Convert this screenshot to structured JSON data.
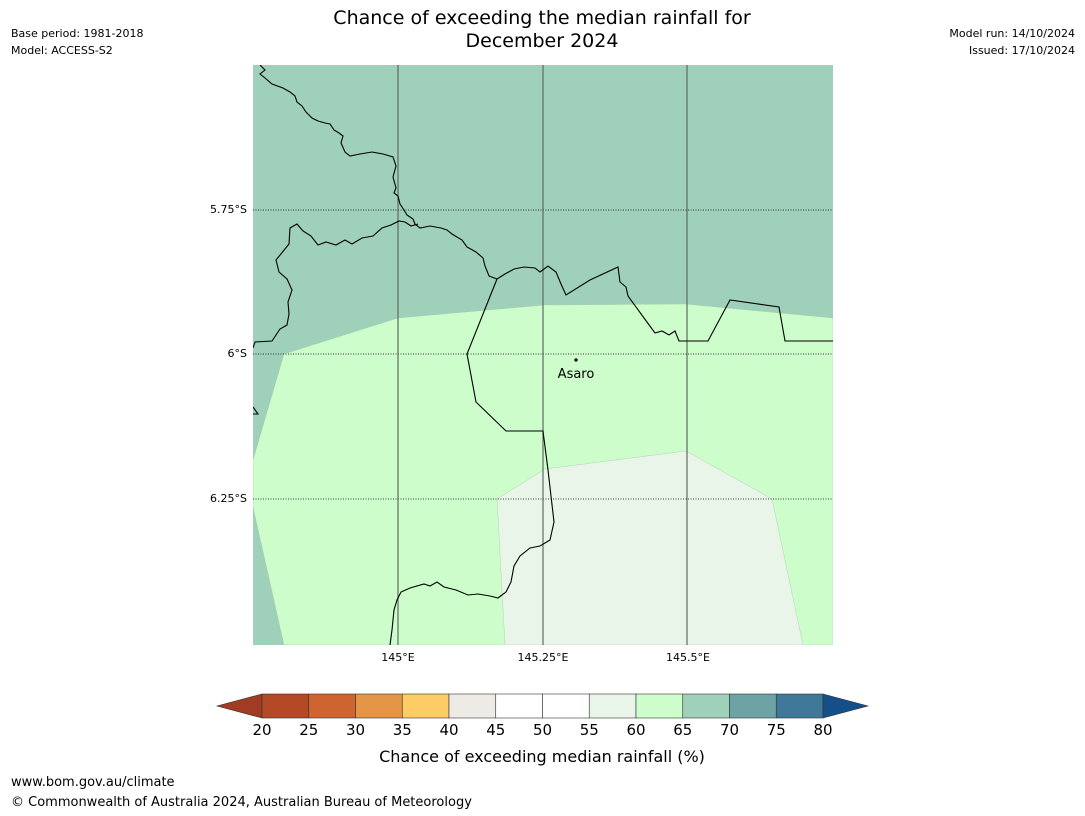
{
  "header": {
    "title_line1": "Chance of exceeding the median rainfall for",
    "title_line2": "December 2024",
    "base_period": "Base period: 1981-2018",
    "model": "Model: ACCESS-S2",
    "model_run": "Model run: 14/10/2024",
    "issued": "Issued: 17/10/2024"
  },
  "map": {
    "lat_ticks": [
      "5.75°S",
      "6°S",
      "6.25°S"
    ],
    "lon_ticks": [
      "145°E",
      "145.25°E",
      "145.5°E"
    ],
    "place": "Asaro",
    "colors": {
      "band_65_70": "#9ed0ba",
      "band_60_65": "#ccfdcb",
      "band_55_60": "#e9f5e9",
      "border": "#000000",
      "gridline": "#5f6b62"
    }
  },
  "colorbar": {
    "label": "Chance of exceeding median rainfall (%)",
    "ticks": [
      "20",
      "25",
      "30",
      "35",
      "40",
      "45",
      "50",
      "55",
      "60",
      "65",
      "70",
      "75",
      "80"
    ],
    "colors": [
      "#a13b24",
      "#b34a25",
      "#ce6430",
      "#e49646",
      "#fdcc66",
      "#eeeae6",
      "#ffffff",
      "#ffffff",
      "#e9f5e9",
      "#ccfdcb",
      "#9ed0ba",
      "#6da3a5",
      "#3f7898",
      "#144f89"
    ]
  },
  "footer": {
    "url": "www.bom.gov.au/climate",
    "copyright": "© Commonwealth of Australia 2024, Australian Bureau of Meteorology"
  }
}
